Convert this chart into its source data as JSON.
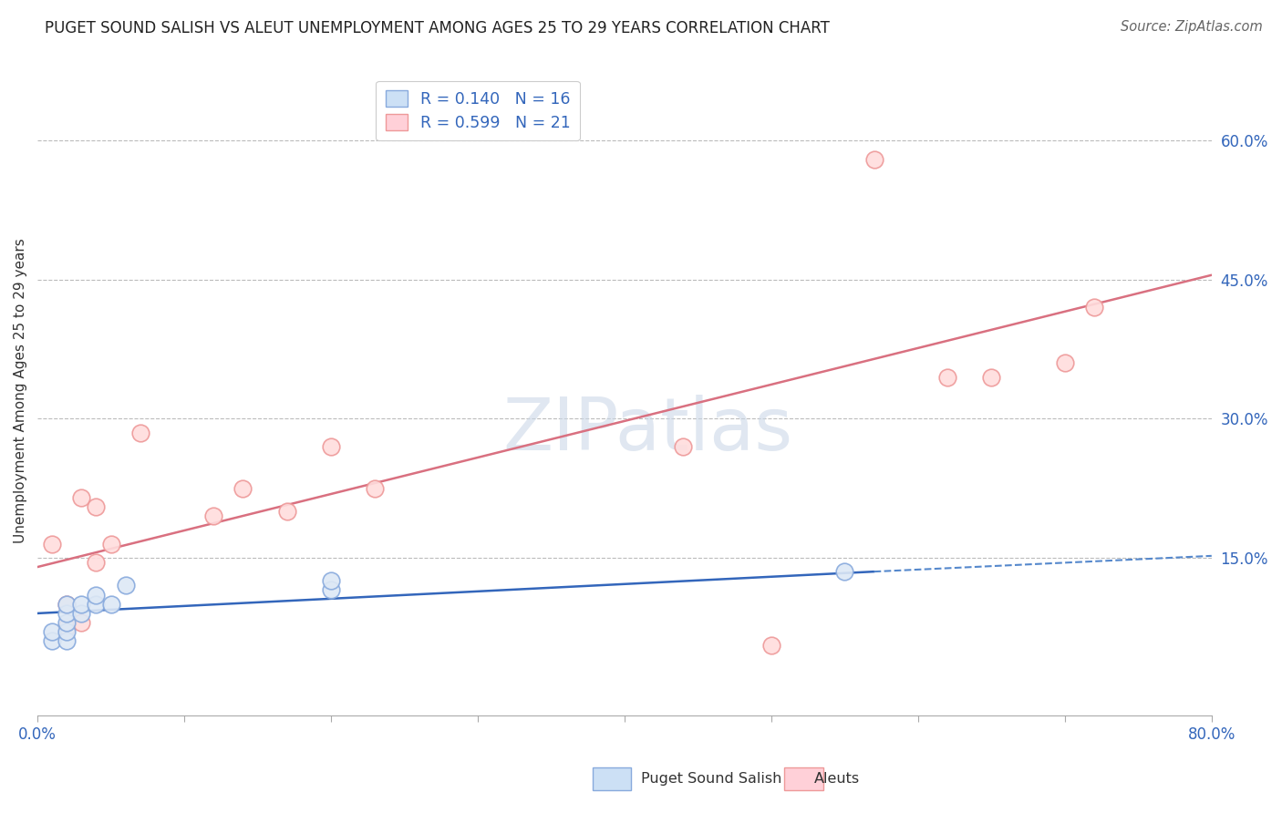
{
  "title": "PUGET SOUND SALISH VS ALEUT UNEMPLOYMENT AMONG AGES 25 TO 29 YEARS CORRELATION CHART",
  "source": "Source: ZipAtlas.com",
  "ylabel": "Unemployment Among Ages 25 to 29 years",
  "xlim": [
    0.0,
    0.8
  ],
  "ylim": [
    -0.02,
    0.68
  ],
  "xticks": [
    0.0,
    0.1,
    0.2,
    0.3,
    0.4,
    0.5,
    0.6,
    0.7,
    0.8
  ],
  "xticklabels": [
    "0.0%",
    "",
    "",
    "",
    "",
    "",
    "",
    "",
    "80.0%"
  ],
  "ytick_positions": [
    0.15,
    0.3,
    0.45,
    0.6
  ],
  "ytick_labels": [
    "15.0%",
    "30.0%",
    "45.0%",
    "60.0%"
  ],
  "grid_color": "#bbbbbb",
  "background_color": "#ffffff",
  "puget_color": "#88aadd",
  "aleut_color": "#ee9999",
  "puget_scatter_x": [
    0.01,
    0.01,
    0.02,
    0.02,
    0.02,
    0.02,
    0.02,
    0.03,
    0.03,
    0.04,
    0.04,
    0.05,
    0.06,
    0.2,
    0.2,
    0.55
  ],
  "puget_scatter_y": [
    0.06,
    0.07,
    0.06,
    0.07,
    0.08,
    0.09,
    0.1,
    0.09,
    0.1,
    0.1,
    0.11,
    0.1,
    0.12,
    0.115,
    0.125,
    0.135
  ],
  "aleut_scatter_x": [
    0.01,
    0.02,
    0.02,
    0.03,
    0.03,
    0.04,
    0.04,
    0.05,
    0.07,
    0.12,
    0.14,
    0.17,
    0.2,
    0.23,
    0.44,
    0.5,
    0.57,
    0.62,
    0.65,
    0.7,
    0.72
  ],
  "aleut_scatter_y": [
    0.165,
    0.075,
    0.1,
    0.08,
    0.215,
    0.145,
    0.205,
    0.165,
    0.285,
    0.195,
    0.225,
    0.2,
    0.27,
    0.225,
    0.27,
    0.055,
    0.58,
    0.345,
    0.345,
    0.36,
    0.42
  ],
  "puget_R": 0.14,
  "puget_N": 16,
  "aleut_R": 0.599,
  "aleut_N": 21,
  "puget_solid_line_x": [
    0.0,
    0.57
  ],
  "puget_solid_line_y": [
    0.09,
    0.135
  ],
  "puget_dash_line_x": [
    0.57,
    0.8
  ],
  "puget_dash_line_y": [
    0.135,
    0.152
  ],
  "aleut_line_x": [
    0.0,
    0.8
  ],
  "aleut_line_y": [
    0.14,
    0.455
  ],
  "watermark_text": "ZIPatlas",
  "watermark_color": "#ccd8e8",
  "watermark_alpha": 0.6
}
